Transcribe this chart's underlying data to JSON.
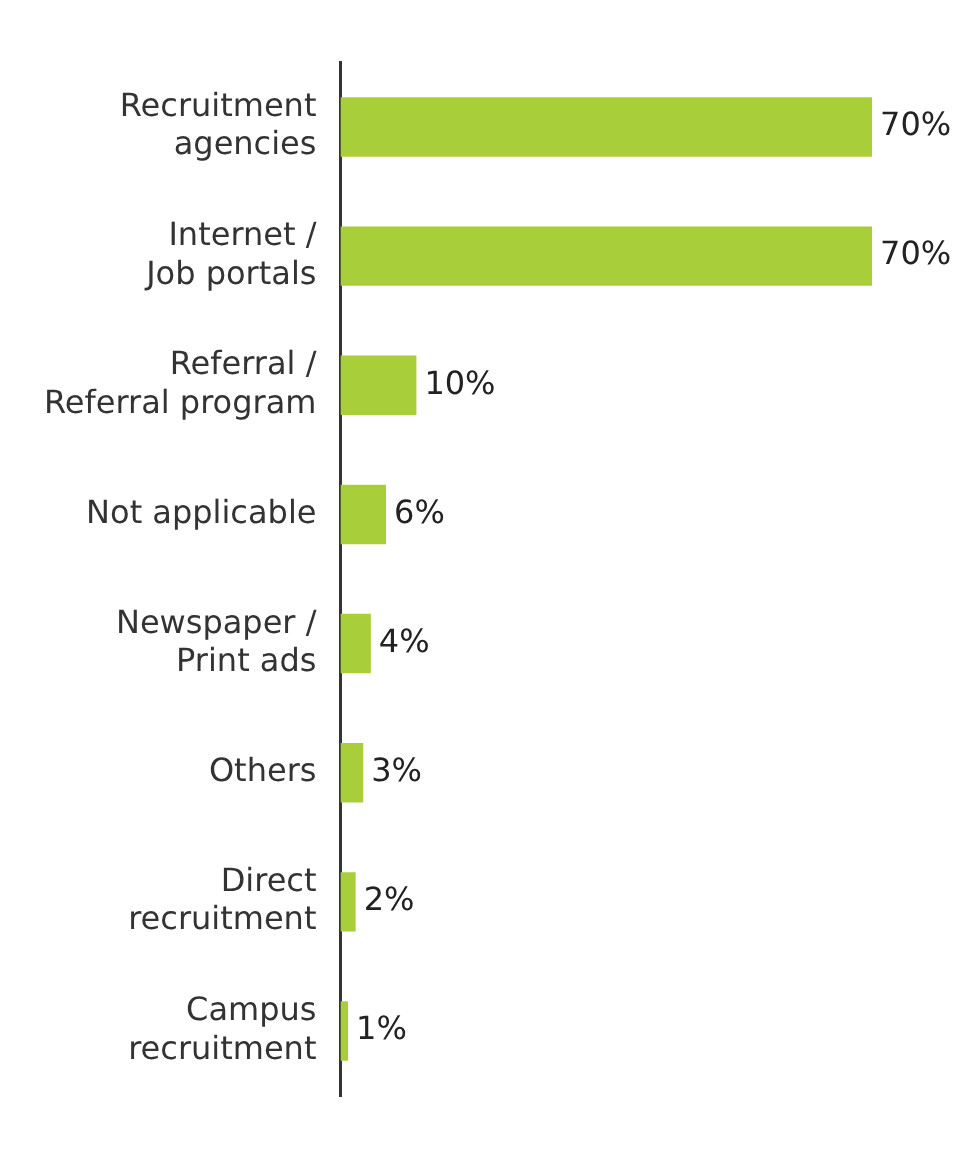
{
  "chart_data": {
    "type": "bar",
    "orientation": "horizontal",
    "categories": [
      "Recruitment\nagencies",
      "Internet /\nJob portals",
      "Referral /\nReferral program",
      "Not applicable",
      "Newspaper /\nPrint ads",
      "Others",
      "Direct\nrecruitment",
      "Campus\nrecruitment"
    ],
    "values": [
      70,
      70,
      10,
      6,
      4,
      3,
      2,
      1
    ],
    "value_labels": [
      "70%",
      "70%",
      "10%",
      "6%",
      "4%",
      "3%",
      "2%",
      "1%"
    ],
    "color": "#a8cf3a"
  }
}
